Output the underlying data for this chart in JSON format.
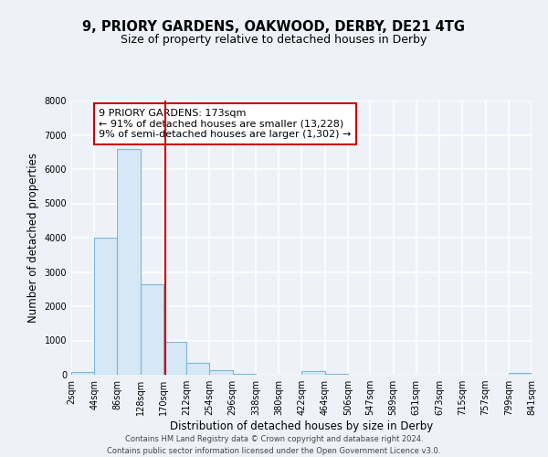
{
  "title_line1": "9, PRIORY GARDENS, OAKWOOD, DERBY, DE21 4TG",
  "title_line2": "Size of property relative to detached houses in Derby",
  "xlabel": "Distribution of detached houses by size in Derby",
  "ylabel": "Number of detached properties",
  "bin_edges": [
    2,
    44,
    86,
    128,
    170,
    212,
    254,
    296,
    338,
    380,
    422,
    464,
    506,
    547,
    589,
    631,
    673,
    715,
    757,
    799,
    841
  ],
  "bin_counts": [
    70,
    4000,
    6600,
    2650,
    950,
    340,
    130,
    20,
    0,
    0,
    100,
    20,
    0,
    0,
    0,
    0,
    0,
    0,
    0,
    50
  ],
  "bar_color": "#d6e8f5",
  "bar_edge_color": "#7ab8d9",
  "vline_x": 173,
  "vline_color": "#cc0000",
  "annotation_box_text": "9 PRIORY GARDENS: 173sqm\n← 91% of detached houses are smaller (13,228)\n9% of semi-detached houses are larger (1,302) →",
  "annotation_box_color": "white",
  "annotation_box_edge_color": "#cc0000",
  "ylim": [
    0,
    8000
  ],
  "yticks": [
    0,
    1000,
    2000,
    3000,
    4000,
    5000,
    6000,
    7000,
    8000
  ],
  "footer_line1": "Contains HM Land Registry data © Crown copyright and database right 2024.",
  "footer_line2": "Contains public sector information licensed under the Open Government Licence v3.0.",
  "bg_color": "#eef2f8",
  "grid_color": "white",
  "title1_fontsize": 10.5,
  "title2_fontsize": 9,
  "axis_label_fontsize": 8.5,
  "tick_fontsize": 7,
  "annotation_fontsize": 8,
  "footer_fontsize": 6
}
